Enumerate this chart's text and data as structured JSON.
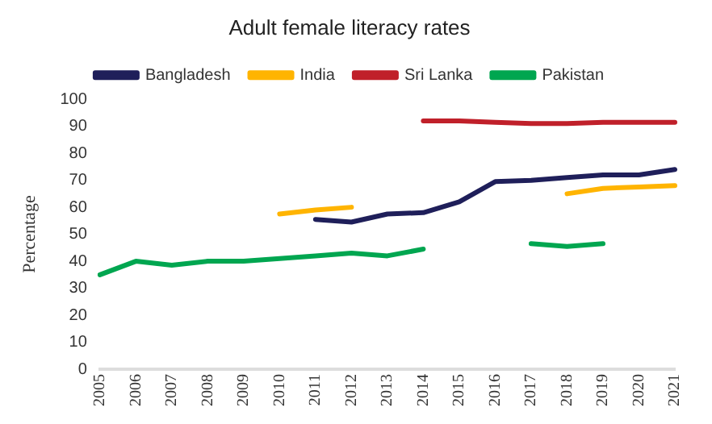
{
  "chart_data": {
    "type": "line",
    "title": "Adult female literacy rates",
    "ylabel": "Percentage",
    "categories": [
      "2005",
      "2006",
      "2007",
      "2008",
      "2009",
      "2010",
      "2011",
      "2012",
      "2013",
      "2014",
      "2015",
      "2016",
      "2017",
      "2018",
      "2019",
      "2020",
      "2021"
    ],
    "series": [
      {
        "name": "Bangladesh",
        "color": "#1f1f5a",
        "values": [
          null,
          null,
          null,
          null,
          null,
          null,
          55.5,
          54.5,
          57.5,
          58,
          62,
          69.5,
          70,
          71,
          72,
          72,
          74
        ]
      },
      {
        "name": "India",
        "color": "#ffb400",
        "values": [
          null,
          null,
          null,
          null,
          null,
          57.5,
          59,
          60,
          null,
          null,
          null,
          null,
          null,
          65,
          67,
          67.5,
          68
        ]
      },
      {
        "name": "Sri Lanka",
        "color": "#c0202a",
        "values": [
          null,
          null,
          null,
          null,
          null,
          null,
          null,
          null,
          null,
          92,
          92,
          91.5,
          91,
          91,
          91.5,
          91.5,
          91.5
        ]
      },
      {
        "name": "Pakistan",
        "color": "#00a650",
        "values": [
          35,
          40,
          38.5,
          40,
          40,
          41,
          42,
          43,
          42,
          44.5,
          null,
          null,
          46.5,
          45.5,
          46.5,
          null,
          null
        ]
      }
    ],
    "ylim": [
      0,
      100
    ],
    "yticks": [
      0,
      10,
      20,
      30,
      40,
      50,
      60,
      70,
      80,
      90,
      100
    ],
    "grid": false,
    "legend": "top",
    "marker": "none",
    "line_style": "solid"
  }
}
